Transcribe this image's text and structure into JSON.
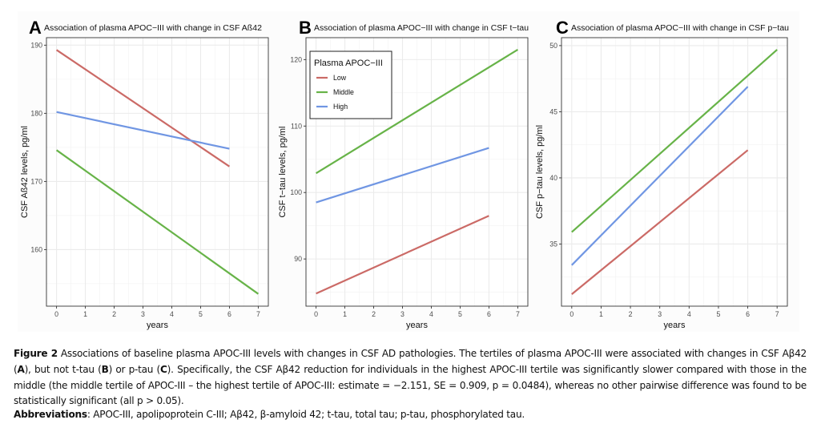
{
  "figure": {
    "caption": {
      "label": "Figure 2",
      "line1": " Associations of baseline plasma APOC-III levels with changes in CSF AD pathologies. The tertiles of plasma APOC-III were associated with changes in CSF Aβ42 (",
      "A": "A",
      "mid1": "), but not t-tau (",
      "B": "B",
      "mid2": ") or p-tau (",
      "C": "C",
      "rest": "). Specifically, the CSF Aβ42 reduction for individuals in the highest APOC-III tertile was significantly slower compared with those in the middle (the middle tertile of APOC-III – the highest tertile of APOC-III: estimate = −2.151, SE = 0.909, p = 0.0484), whereas no other pairwise difference was found to be statistically significant (all p > 0.05)."
    },
    "abbreviations": {
      "label": "Abbreviations",
      "text": ": APOC-III, apolipoprotein C-III; Aβ42, β-amyloid 42; t-tau, total tau; p-tau, phosphorylated tau."
    }
  },
  "legend": {
    "title": "Plasma APOC−III",
    "placement": "top-left of panel B",
    "entries": [
      {
        "name": "Low",
        "color": "#CB6A66"
      },
      {
        "name": "Middle",
        "color": "#67B348"
      },
      {
        "name": "High",
        "color": "#7096E3"
      }
    ]
  },
  "chart_data": [
    {
      "type": "line",
      "panel": "A",
      "title": "Association of plasma APOC−III with change in CSF Aß42",
      "xlabel": "years",
      "ylabel": "CSF Aß42 levels, pg/ml",
      "xlim": [
        -0.35,
        7.35
      ],
      "ylim": [
        151.7,
        191.1
      ],
      "xticks": [
        0,
        1,
        2,
        3,
        4,
        5,
        6,
        7
      ],
      "yticks": [
        160,
        170,
        180,
        190
      ],
      "grid": true,
      "series": [
        {
          "name": "Low",
          "x": [
            0,
            6
          ],
          "y": [
            189.3,
            172.2
          ]
        },
        {
          "name": "Middle",
          "x": [
            0,
            7
          ],
          "y": [
            174.6,
            153.5
          ]
        },
        {
          "name": "High",
          "x": [
            0,
            6
          ],
          "y": [
            180.2,
            174.8
          ]
        }
      ]
    },
    {
      "type": "line",
      "panel": "B",
      "title": "Association of plasma APOC−III with change in CSF t−tau",
      "xlabel": "years",
      "ylabel": "CSF t−tau levels, pg/ml",
      "xlim": [
        -0.35,
        7.35
      ],
      "ylim": [
        82.9,
        123.3
      ],
      "xticks": [
        0,
        1,
        2,
        3,
        4,
        5,
        6,
        7
      ],
      "yticks": [
        90,
        100,
        110,
        120
      ],
      "grid": true,
      "series": [
        {
          "name": "Low",
          "x": [
            0,
            6
          ],
          "y": [
            84.8,
            96.5
          ]
        },
        {
          "name": "Middle",
          "x": [
            0,
            7
          ],
          "y": [
            102.9,
            121.5
          ]
        },
        {
          "name": "High",
          "x": [
            0,
            6
          ],
          "y": [
            98.5,
            106.7
          ]
        }
      ]
    },
    {
      "type": "line",
      "panel": "C",
      "title": "Association of plasma APOC−III with change in CSF p−tau",
      "xlabel": "years",
      "ylabel": "CSF p−tau levels, pg/ml",
      "xlim": [
        -0.35,
        7.35
      ],
      "ylim": [
        30.3,
        50.6
      ],
      "xticks": [
        0,
        1,
        2,
        3,
        4,
        5,
        6,
        7
      ],
      "yticks": [
        35,
        40,
        45,
        50
      ],
      "grid": true,
      "series": [
        {
          "name": "Low",
          "x": [
            0,
            6
          ],
          "y": [
            31.2,
            42.1
          ]
        },
        {
          "name": "Middle",
          "x": [
            0,
            7
          ],
          "y": [
            35.9,
            49.7
          ]
        },
        {
          "name": "High",
          "x": [
            0,
            6
          ],
          "y": [
            33.4,
            46.9
          ]
        }
      ]
    }
  ]
}
